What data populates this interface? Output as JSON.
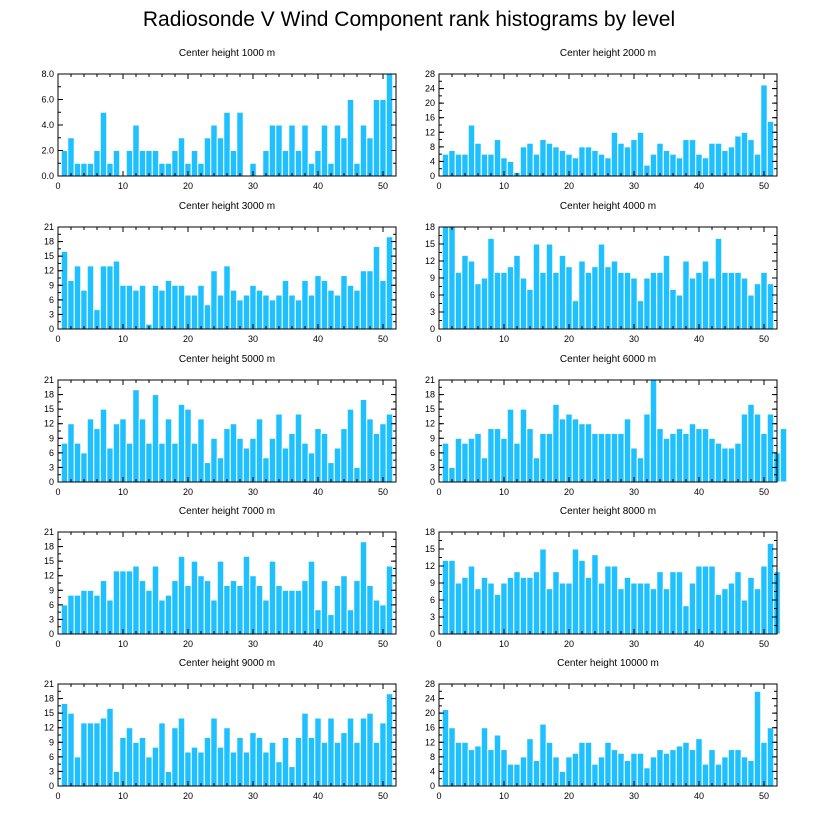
{
  "title": "Radiosonde V Wind Component rank histograms by level",
  "colors": {
    "bar": "#1ec0ff",
    "bar_edge": "#ffffff",
    "axis": "#000000"
  },
  "chart_data": [
    {
      "type": "bar",
      "title": "Center height 1000 m",
      "xlim": [
        0,
        52
      ],
      "ylim": [
        0,
        8
      ],
      "yticks": [
        0,
        2,
        4,
        6,
        8
      ],
      "ytick_labels": [
        "0.0",
        "2.0",
        "4.0",
        "6.0",
        "8.0"
      ],
      "xticks": [
        0,
        10,
        20,
        30,
        40,
        50
      ],
      "xtick_labels": [
        "0",
        "10",
        "20",
        "30",
        "40",
        "50"
      ],
      "values": [
        0,
        2,
        3,
        1,
        1,
        1,
        2,
        5,
        1,
        2,
        0,
        2,
        4,
        2,
        2,
        2,
        1,
        1,
        2,
        3,
        1,
        2,
        1,
        3,
        4,
        3,
        5,
        2,
        5,
        0,
        1,
        0,
        2,
        4,
        4,
        2,
        4,
        2,
        4,
        1,
        2,
        4,
        1,
        4,
        3,
        6,
        1,
        4,
        3,
        6,
        6,
        8
      ]
    },
    {
      "type": "bar",
      "title": "Center height 2000 m",
      "xlim": [
        0,
        52
      ],
      "ylim": [
        0,
        28
      ],
      "yticks": [
        0,
        4,
        8,
        12,
        16,
        20,
        24,
        28
      ],
      "ytick_labels": [
        "0",
        "4",
        "8",
        "12",
        "16",
        "20",
        "24",
        "28"
      ],
      "xticks": [
        0,
        10,
        20,
        30,
        40,
        50
      ],
      "xtick_labels": [
        "0",
        "10",
        "20",
        "30",
        "40",
        "50"
      ],
      "values": [
        0,
        6,
        7,
        6,
        6,
        14,
        9,
        6,
        6,
        10,
        5,
        4,
        1,
        8,
        9,
        6,
        10,
        9,
        8,
        7,
        6,
        5,
        8,
        8,
        7,
        6,
        5,
        12,
        9,
        8,
        10,
        12,
        3,
        6,
        9,
        7,
        6,
        5,
        10,
        10,
        6,
        5,
        9,
        9,
        7,
        8,
        11,
        12,
        10,
        6,
        25,
        15
      ]
    },
    {
      "type": "bar",
      "title": "Center height 3000 m",
      "xlim": [
        0,
        52
      ],
      "ylim": [
        0,
        21
      ],
      "yticks": [
        0,
        3,
        6,
        9,
        12,
        15,
        18,
        21
      ],
      "ytick_labels": [
        "0",
        "3",
        "6",
        "9",
        "12",
        "15",
        "18",
        "21"
      ],
      "xticks": [
        0,
        10,
        20,
        30,
        40,
        50
      ],
      "xtick_labels": [
        "0",
        "10",
        "20",
        "30",
        "40",
        "50"
      ],
      "values": [
        0,
        16,
        10,
        13,
        8,
        13,
        4,
        13,
        13,
        14,
        9,
        9,
        8,
        9,
        1,
        9,
        8,
        10,
        9,
        9,
        7,
        7,
        9,
        5,
        12,
        7,
        13,
        8,
        6,
        7,
        9,
        8,
        7,
        6,
        7,
        10,
        7,
        6,
        10,
        7,
        11,
        10,
        8,
        7,
        11,
        9,
        8,
        12,
        12,
        17,
        10,
        19
      ]
    },
    {
      "type": "bar",
      "title": "Center height 4000 m",
      "xlim": [
        0,
        52
      ],
      "ylim": [
        0,
        18
      ],
      "yticks": [
        0,
        3,
        6,
        9,
        12,
        15,
        18
      ],
      "ytick_labels": [
        "0",
        "3",
        "6",
        "9",
        "12",
        "15",
        "18"
      ],
      "xticks": [
        0,
        10,
        20,
        30,
        40,
        50
      ],
      "xtick_labels": [
        "0",
        "10",
        "20",
        "30",
        "40",
        "50"
      ],
      "values": [
        0,
        18,
        18,
        10,
        13,
        12,
        8,
        9,
        16,
        10,
        10,
        11,
        13,
        9,
        7,
        15,
        10,
        15,
        10,
        13,
        11,
        5,
        12,
        10,
        11,
        15,
        11,
        12,
        10,
        10,
        9,
        5,
        9,
        10,
        10,
        13,
        7,
        6,
        12,
        9,
        10,
        12,
        9,
        16,
        10,
        10,
        10,
        9,
        6,
        8,
        10,
        8
      ]
    },
    {
      "type": "bar",
      "title": "Center height 5000 m",
      "xlim": [
        0,
        52
      ],
      "ylim": [
        0,
        21
      ],
      "yticks": [
        0,
        3,
        6,
        9,
        12,
        15,
        18,
        21
      ],
      "ytick_labels": [
        "0",
        "3",
        "6",
        "9",
        "12",
        "15",
        "18",
        "21"
      ],
      "xticks": [
        0,
        10,
        20,
        30,
        40,
        50
      ],
      "xtick_labels": [
        "0",
        "10",
        "20",
        "30",
        "40",
        "50"
      ],
      "values": [
        0,
        8,
        12,
        8,
        6,
        13,
        11,
        15,
        7,
        12,
        13,
        8,
        19,
        13,
        8,
        18,
        8,
        13,
        8,
        16,
        15,
        8,
        13,
        4,
        9,
        5,
        11,
        12,
        9,
        7,
        9,
        13,
        5,
        9,
        14,
        7,
        10,
        14,
        8,
        6,
        11,
        10,
        4,
        7,
        11,
        15,
        3,
        17,
        13,
        10,
        12,
        14
      ]
    },
    {
      "type": "bar",
      "title": "Center height 6000 m",
      "xlim": [
        0,
        52
      ],
      "ylim": [
        0,
        21
      ],
      "yticks": [
        0,
        3,
        6,
        9,
        12,
        15,
        18,
        21
      ],
      "ytick_labels": [
        "0",
        "3",
        "6",
        "9",
        "12",
        "15",
        "18",
        "21"
      ],
      "xticks": [
        0,
        10,
        20,
        30,
        40,
        50
      ],
      "xtick_labels": [
        "0",
        "10",
        "20",
        "30",
        "40",
        "50"
      ],
      "values": [
        0,
        8,
        3,
        9,
        8,
        9,
        10,
        5,
        11,
        11,
        9,
        15,
        8,
        15,
        11,
        5,
        10,
        10,
        16,
        13,
        14,
        13,
        12,
        12,
        10,
        10,
        10,
        10,
        10,
        13,
        7,
        5,
        14,
        21,
        11,
        9,
        10,
        11,
        10,
        12,
        11,
        11,
        9,
        8,
        7,
        7,
        8,
        14,
        16,
        14,
        10,
        14,
        6,
        11
      ]
    },
    {
      "type": "bar",
      "title": "Center height 7000 m",
      "xlim": [
        0,
        52
      ],
      "ylim": [
        0,
        21
      ],
      "yticks": [
        0,
        3,
        6,
        9,
        12,
        15,
        18,
        21
      ],
      "ytick_labels": [
        "0",
        "3",
        "6",
        "9",
        "12",
        "15",
        "18",
        "21"
      ],
      "xticks": [
        0,
        10,
        20,
        30,
        40,
        50
      ],
      "xtick_labels": [
        "0",
        "10",
        "20",
        "30",
        "40",
        "50"
      ],
      "values": [
        0,
        6,
        8,
        8,
        9,
        9,
        8,
        11,
        7,
        13,
        13,
        13,
        14,
        11,
        9,
        14,
        7,
        8,
        11,
        16,
        10,
        15,
        12,
        11,
        7,
        15,
        10,
        11,
        10,
        16,
        12,
        10,
        7,
        15,
        10,
        9,
        9,
        9,
        11,
        15,
        5,
        11,
        4,
        10,
        12,
        5,
        11,
        19,
        10,
        7,
        6,
        14
      ]
    },
    {
      "type": "bar",
      "title": "Center height 8000 m",
      "xlim": [
        0,
        52
      ],
      "ylim": [
        0,
        18
      ],
      "yticks": [
        0,
        3,
        6,
        9,
        12,
        15,
        18
      ],
      "ytick_labels": [
        "0",
        "3",
        "6",
        "9",
        "12",
        "15",
        "18"
      ],
      "xticks": [
        0,
        10,
        20,
        30,
        40,
        50
      ],
      "xtick_labels": [
        "0",
        "10",
        "20",
        "30",
        "40",
        "50"
      ],
      "values": [
        0,
        13,
        13,
        9,
        10,
        12,
        8,
        10,
        9,
        7,
        9,
        10,
        11,
        10,
        10,
        11,
        15,
        8,
        11,
        9,
        9,
        15,
        13,
        10,
        14,
        9,
        12,
        12,
        8,
        10,
        9,
        9,
        9,
        8,
        11,
        8,
        11,
        11,
        5,
        9,
        12,
        12,
        12,
        7,
        8,
        9,
        11,
        6,
        10,
        8,
        12,
        16,
        11
      ]
    },
    {
      "type": "bar",
      "title": "Center height 9000 m",
      "xlim": [
        0,
        52
      ],
      "ylim": [
        0,
        21
      ],
      "yticks": [
        0,
        3,
        6,
        9,
        12,
        15,
        18,
        21
      ],
      "ytick_labels": [
        "0",
        "3",
        "6",
        "9",
        "12",
        "15",
        "18",
        "21"
      ],
      "xticks": [
        0,
        10,
        20,
        30,
        40,
        50
      ],
      "xtick_labels": [
        "0",
        "10",
        "20",
        "30",
        "40",
        "50"
      ],
      "values": [
        0,
        17,
        15,
        6,
        13,
        13,
        13,
        14,
        16,
        3,
        10,
        12,
        9,
        10,
        6,
        8,
        13,
        3,
        12,
        14,
        7,
        8,
        7,
        10,
        14,
        8,
        12,
        7,
        10,
        7,
        11,
        10,
        7,
        9,
        5,
        10,
        4,
        10,
        15,
        10,
        14,
        9,
        14,
        9,
        11,
        14,
        9,
        14,
        15,
        9,
        13,
        19
      ]
    },
    {
      "type": "bar",
      "title": "Center height 10000 m",
      "xlim": [
        0,
        52
      ],
      "ylim": [
        0,
        28
      ],
      "yticks": [
        0,
        4,
        8,
        12,
        16,
        20,
        24,
        28
      ],
      "ytick_labels": [
        "0",
        "4",
        "8",
        "12",
        "16",
        "20",
        "24",
        "28"
      ],
      "xticks": [
        0,
        10,
        20,
        30,
        40,
        50
      ],
      "xtick_labels": [
        "0",
        "10",
        "20",
        "30",
        "40",
        "50"
      ],
      "values": [
        0,
        21,
        16,
        12,
        12,
        10,
        11,
        16,
        10,
        14,
        10,
        6,
        6,
        8,
        13,
        7,
        17,
        12,
        8,
        4,
        8,
        9,
        12,
        12,
        6,
        8,
        12,
        10,
        9,
        7,
        9,
        9,
        5,
        8,
        10,
        9,
        10,
        11,
        12,
        10,
        13,
        6,
        10,
        6,
        8,
        10,
        10,
        8,
        7,
        26,
        12,
        16
      ]
    }
  ]
}
